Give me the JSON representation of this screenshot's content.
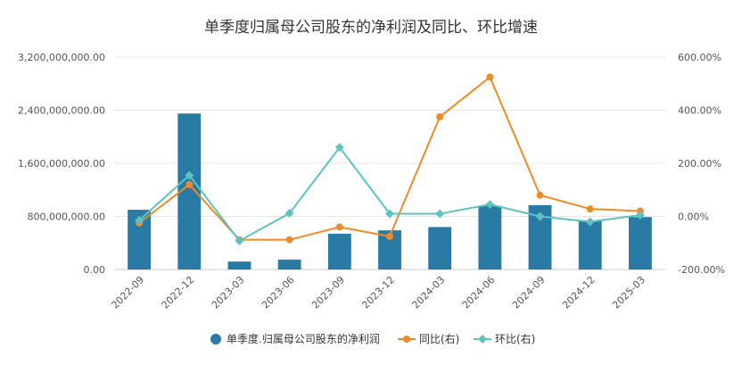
{
  "chart_data": {
    "type": "bar",
    "title": "单季度归属母公司股东的净利润及同比、环比增速",
    "categories": [
      "2022-09",
      "2022-12",
      "2023-03",
      "2023-06",
      "2023-09",
      "2023-12",
      "2024-03",
      "2024-06",
      "2024-09",
      "2024-12",
      "2025-03"
    ],
    "y_left": {
      "ylim": [
        0,
        3200000000
      ],
      "ticks": [
        0,
        800000000,
        1600000000,
        2400000000,
        3200000000
      ],
      "tick_labels": [
        "0.00",
        "800,000,000.00",
        "1,600,000,000.00",
        "2,400,000,000.00",
        "3,200,000,000.00"
      ]
    },
    "y_right": {
      "ylim": [
        -200,
        600
      ],
      "ticks": [
        -200,
        0,
        200,
        400,
        600
      ],
      "tick_labels": [
        "-200.00%",
        "0.00%",
        "200.00%",
        "400.00%",
        "600.00%"
      ]
    },
    "series": [
      {
        "name": "单季度.归属母公司股东的净利润",
        "kind": "bar",
        "axis": "left",
        "color": "#2a7aa6",
        "values": [
          900000000,
          2350000000,
          120000000,
          150000000,
          540000000,
          590000000,
          640000000,
          960000000,
          970000000,
          740000000,
          790000000
        ]
      },
      {
        "name": "同比(右)",
        "kind": "line",
        "axis": "right",
        "color": "#f08a24",
        "values": [
          -25,
          120,
          -88,
          -88,
          -40,
          -75,
          375,
          525,
          80,
          28,
          20
        ]
      },
      {
        "name": "环比(右)",
        "kind": "line",
        "axis": "right",
        "color": "#5cc2c2",
        "values": [
          -15,
          155,
          -92,
          12,
          260,
          10,
          10,
          45,
          0,
          -20,
          5
        ]
      }
    ],
    "legend_position": "bottom",
    "grid": true
  }
}
